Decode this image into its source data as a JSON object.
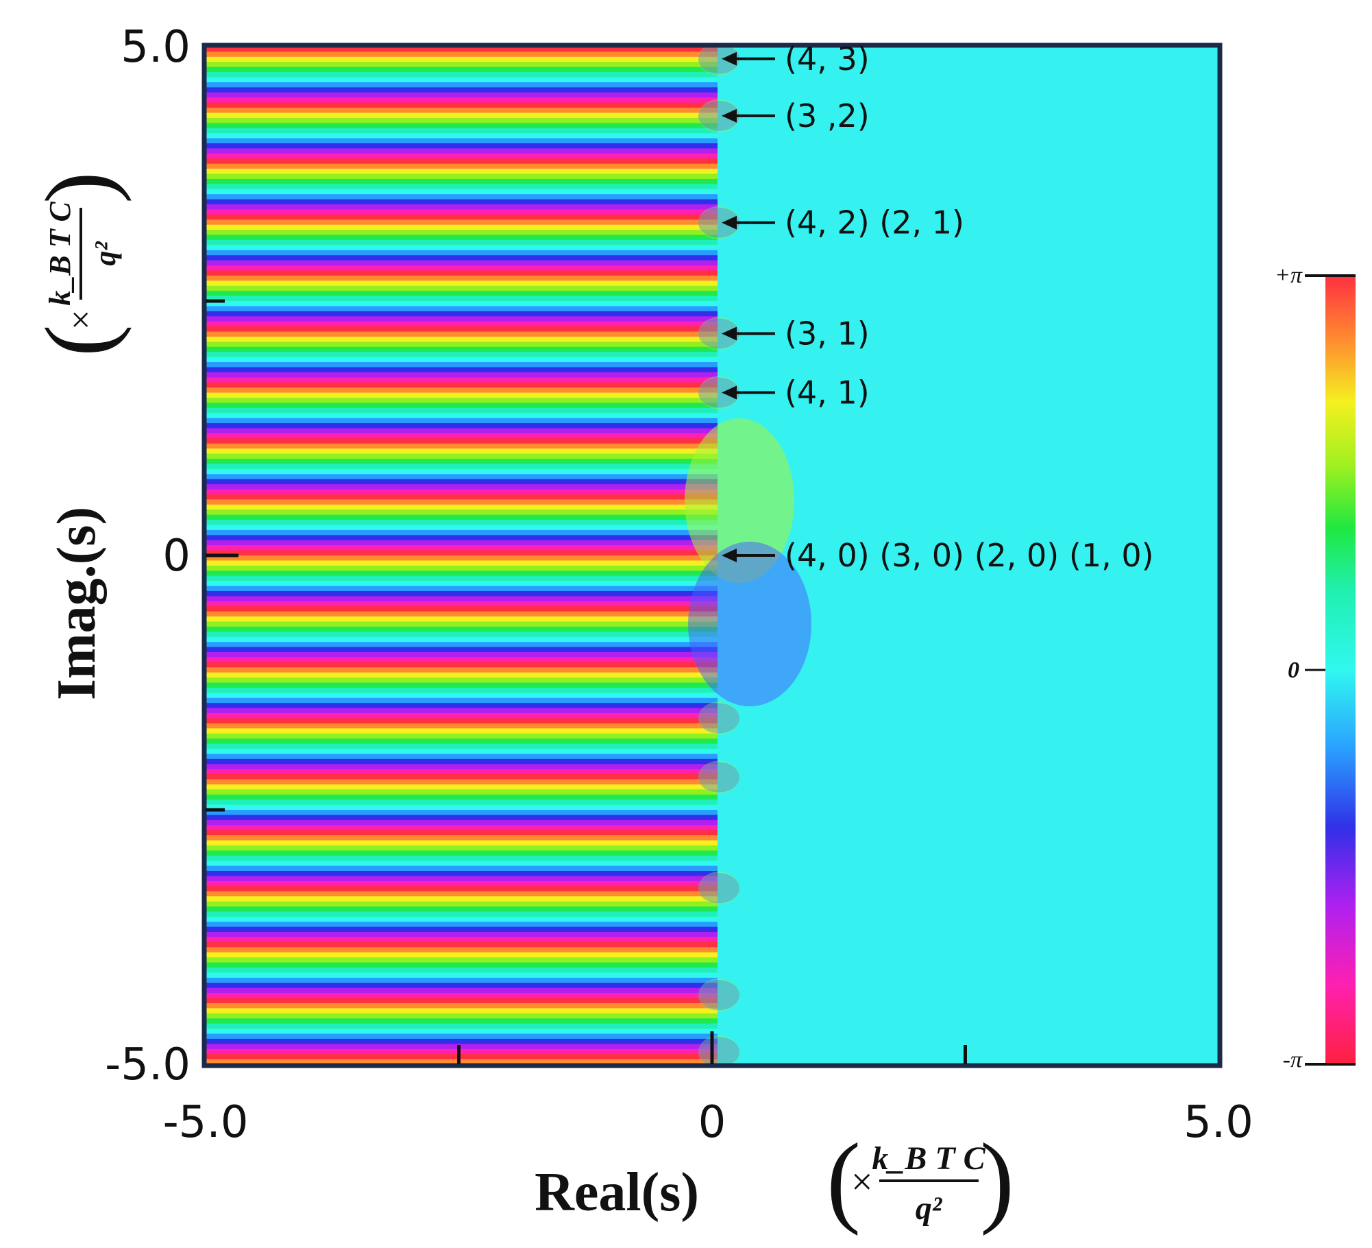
{
  "chart_data": {
    "type": "heatmap",
    "title": "",
    "xlabel": "Real(s)",
    "ylabel": "Imag.(s)",
    "unit": {
      "prefix": "×",
      "numerator": "k_B T C",
      "denominator": "q²"
    },
    "xlim": [
      -5.0,
      5.0
    ],
    "ylim": [
      -5.0,
      5.0
    ],
    "x_tick_labels": [
      {
        "value": -5.0,
        "text": "-5.0"
      },
      {
        "value": 0,
        "text": "0"
      },
      {
        "value": 5.0,
        "text": "5.0"
      }
    ],
    "y_tick_labels": [
      {
        "value": 5.0,
        "text": "5.0"
      },
      {
        "value": 0,
        "text": "0"
      },
      {
        "value": -5.0,
        "text": "-5.0"
      }
    ],
    "x_minor_ticks": [
      -2.5,
      0,
      2.5
    ],
    "y_minor_ticks": [
      2.5,
      0,
      -2.5
    ],
    "colorbar": {
      "label_top": "+π",
      "label_mid": "0",
      "label_bottom": "-π",
      "range": [
        -3.14159,
        3.14159
      ]
    },
    "zeros": [
      {
        "real": 0,
        "imag": 4.88,
        "label": "(4, 3)"
      },
      {
        "real": 0,
        "imag": 4.32,
        "label": "(3 ,2)"
      },
      {
        "real": 0,
        "imag": 3.27,
        "label": "(4, 2) (2, 1)"
      },
      {
        "real": 0,
        "imag": 2.18,
        "label": "(3, 1)"
      },
      {
        "real": 0,
        "imag": 1.6,
        "label": "(4, 1)"
      },
      {
        "real": 0,
        "imag": 0,
        "label": "(4, 0) (3, 0) (2, 0) (1, 0)"
      }
    ],
    "mirror_zeros_imag": [
      -1.6,
      -2.18,
      -3.27,
      -4.32,
      -4.88
    ]
  }
}
